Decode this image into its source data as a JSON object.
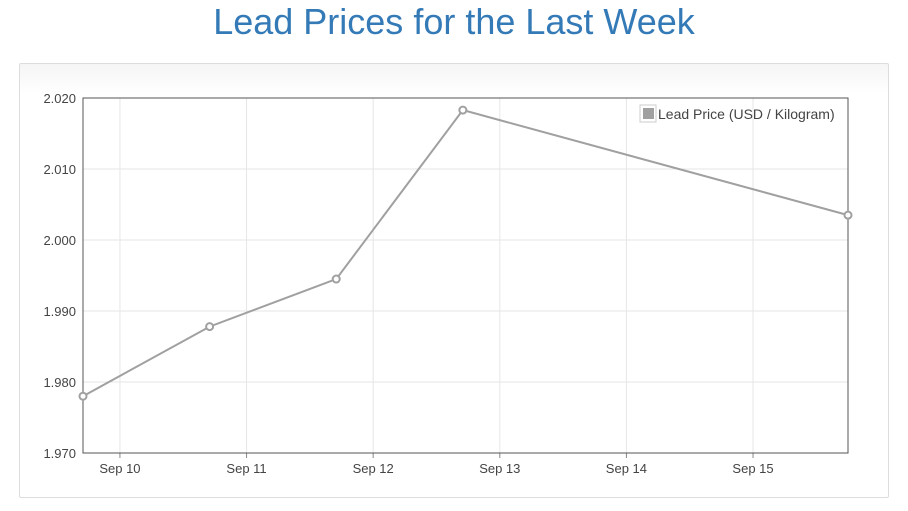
{
  "title": "Lead Prices for the Last Week",
  "chart_data": {
    "type": "line",
    "title": "Lead Prices for the Last Week",
    "xlabel": "",
    "ylabel": "",
    "x_ticks": [
      "Sep 10",
      "Sep 11",
      "Sep 12",
      "Sep 13",
      "Sep 14",
      "Sep 15"
    ],
    "y_ticks": [
      "1.970",
      "1.980",
      "1.990",
      "2.000",
      "2.010",
      "2.020"
    ],
    "ylim": [
      1.97,
      2.02
    ],
    "xlim": [
      "2023-09-09T17:00",
      "2023-09-15T18:00"
    ],
    "grid": true,
    "legend_position": "top-right",
    "series": [
      {
        "name": "Lead Price (USD / Kilogram)",
        "color": "#a0a0a0",
        "points": [
          {
            "x": "2023-09-09T17:00",
            "y": 1.978
          },
          {
            "x": "2023-09-10T17:00",
            "y": 1.9878
          },
          {
            "x": "2023-09-11T17:00",
            "y": 1.9945
          },
          {
            "x": "2023-09-12T17:00",
            "y": 2.0183
          },
          {
            "x": "2023-09-15T18:00",
            "y": 2.0035
          }
        ]
      }
    ]
  }
}
